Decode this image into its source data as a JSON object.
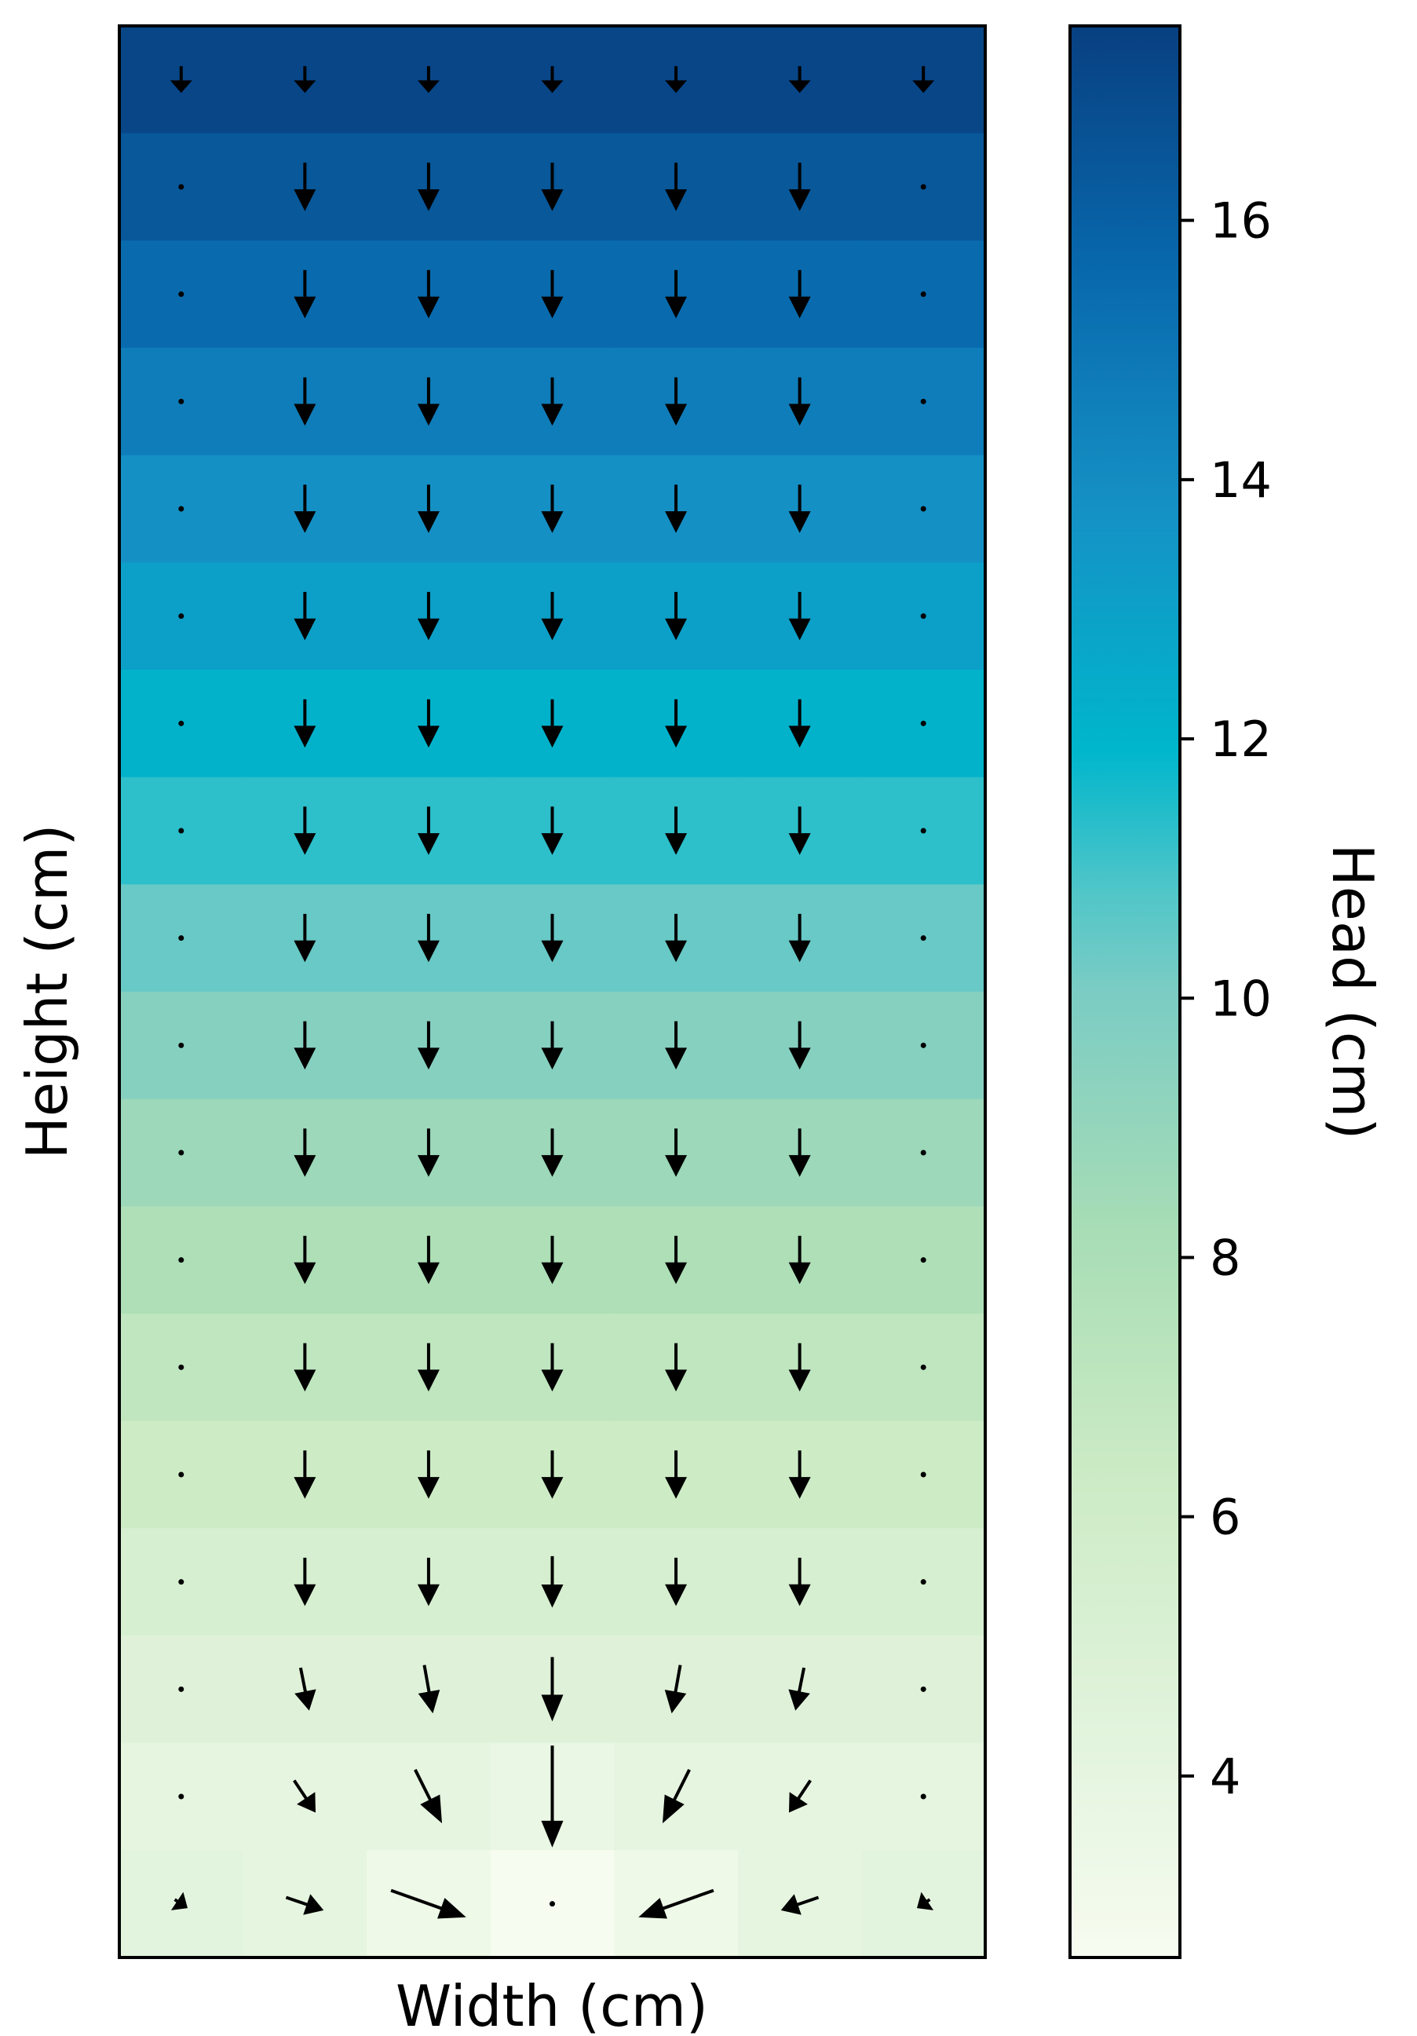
{
  "chart_data": {
    "type": "heatmap",
    "subtype": "quiver",
    "title": "",
    "xlabel": "Width (cm)",
    "ylabel": "Height (cm)",
    "colorbar": {
      "label": "Head (cm)",
      "ticks": [
        4,
        6,
        8,
        10,
        12,
        14,
        16
      ],
      "range": [
        2.6,
        17.5
      ],
      "colormap": "GnBu"
    },
    "grid": {
      "columns": 7,
      "rows": 18
    },
    "head_rows": [
      17.2,
      16.4,
      15.5,
      14.7,
      13.8,
      13.0,
      12.1,
      11.3,
      10.4,
      9.6,
      8.7,
      7.9,
      7.0,
      6.2,
      5.4,
      4.6,
      4.0,
      3.6
    ],
    "last_row_heads": [
      4.2,
      4.0,
      3.3,
      2.6,
      3.3,
      4.0,
      4.2
    ],
    "quiver": {
      "comment": "arrow components per row (top to bottom) and column (left to right); u>0 right, v>0 down; arrows scaled by magnitude",
      "rows": [
        [
          [
            0,
            0.25
          ],
          [
            0,
            0.25
          ],
          [
            0,
            0.25
          ],
          [
            0,
            0.25
          ],
          [
            0,
            0.25
          ],
          [
            0,
            0.25
          ],
          [
            0,
            0.25
          ]
        ],
        [
          [
            0,
            0
          ],
          [
            0,
            0.45
          ],
          [
            0,
            0.45
          ],
          [
            0,
            0.45
          ],
          [
            0,
            0.45
          ],
          [
            0,
            0.45
          ],
          [
            0,
            0
          ]
        ],
        [
          [
            0,
            0
          ],
          [
            0,
            0.45
          ],
          [
            0,
            0.45
          ],
          [
            0,
            0.45
          ],
          [
            0,
            0.45
          ],
          [
            0,
            0.45
          ],
          [
            0,
            0
          ]
        ],
        [
          [
            0,
            0
          ],
          [
            0,
            0.45
          ],
          [
            0,
            0.45
          ],
          [
            0,
            0.45
          ],
          [
            0,
            0.45
          ],
          [
            0,
            0.45
          ],
          [
            0,
            0
          ]
        ],
        [
          [
            0,
            0
          ],
          [
            0,
            0.45
          ],
          [
            0,
            0.45
          ],
          [
            0,
            0.45
          ],
          [
            0,
            0.45
          ],
          [
            0,
            0.45
          ],
          [
            0,
            0
          ]
        ],
        [
          [
            0,
            0
          ],
          [
            0,
            0.45
          ],
          [
            0,
            0.45
          ],
          [
            0,
            0.45
          ],
          [
            0,
            0.45
          ],
          [
            0,
            0.45
          ],
          [
            0,
            0
          ]
        ],
        [
          [
            0,
            0
          ],
          [
            0,
            0.45
          ],
          [
            0,
            0.45
          ],
          [
            0,
            0.45
          ],
          [
            0,
            0.45
          ],
          [
            0,
            0.45
          ],
          [
            0,
            0
          ]
        ],
        [
          [
            0,
            0
          ],
          [
            0,
            0.45
          ],
          [
            0,
            0.45
          ],
          [
            0,
            0.45
          ],
          [
            0,
            0.45
          ],
          [
            0,
            0.45
          ],
          [
            0,
            0
          ]
        ],
        [
          [
            0,
            0
          ],
          [
            0,
            0.45
          ],
          [
            0,
            0.45
          ],
          [
            0,
            0.45
          ],
          [
            0,
            0.45
          ],
          [
            0,
            0.45
          ],
          [
            0,
            0
          ]
        ],
        [
          [
            0,
            0
          ],
          [
            0,
            0.45
          ],
          [
            0,
            0.45
          ],
          [
            0,
            0.45
          ],
          [
            0,
            0.45
          ],
          [
            0,
            0.45
          ],
          [
            0,
            0
          ]
        ],
        [
          [
            0,
            0
          ],
          [
            0,
            0.45
          ],
          [
            0,
            0.45
          ],
          [
            0,
            0.45
          ],
          [
            0,
            0.45
          ],
          [
            0,
            0.45
          ],
          [
            0,
            0
          ]
        ],
        [
          [
            0,
            0
          ],
          [
            0,
            0.45
          ],
          [
            0,
            0.45
          ],
          [
            0,
            0.45
          ],
          [
            0,
            0.45
          ],
          [
            0,
            0.45
          ],
          [
            0,
            0
          ]
        ],
        [
          [
            0,
            0
          ],
          [
            0,
            0.45
          ],
          [
            0,
            0.45
          ],
          [
            0,
            0.45
          ],
          [
            0,
            0.45
          ],
          [
            0,
            0.45
          ],
          [
            0,
            0
          ]
        ],
        [
          [
            0,
            0
          ],
          [
            0,
            0.45
          ],
          [
            0,
            0.45
          ],
          [
            0,
            0.45
          ],
          [
            0,
            0.45
          ],
          [
            0,
            0.45
          ],
          [
            0,
            0
          ]
        ],
        [
          [
            0,
            0
          ],
          [
            0,
            0.45
          ],
          [
            0,
            0.45
          ],
          [
            0,
            0.48
          ],
          [
            0,
            0.45
          ],
          [
            0,
            0.45
          ],
          [
            0,
            0
          ]
        ],
        [
          [
            0,
            0
          ],
          [
            0.08,
            0.4
          ],
          [
            0.08,
            0.45
          ],
          [
            0,
            0.6
          ],
          [
            -0.08,
            0.45
          ],
          [
            -0.08,
            0.4
          ],
          [
            0,
            0
          ]
        ],
        [
          [
            0,
            0
          ],
          [
            0.2,
            0.3
          ],
          [
            0.25,
            0.5
          ],
          [
            0,
            0.95
          ],
          [
            -0.25,
            0.5
          ],
          [
            -0.2,
            0.3
          ],
          [
            0,
            0
          ]
        ],
        [
          [
            0.12,
            0.08
          ],
          [
            0.35,
            0.12
          ],
          [
            0.7,
            0.25
          ],
          [
            0,
            0
          ],
          [
            -0.7,
            0.25
          ],
          [
            -0.35,
            0.12
          ],
          [
            -0.12,
            0.08
          ]
        ]
      ]
    }
  }
}
